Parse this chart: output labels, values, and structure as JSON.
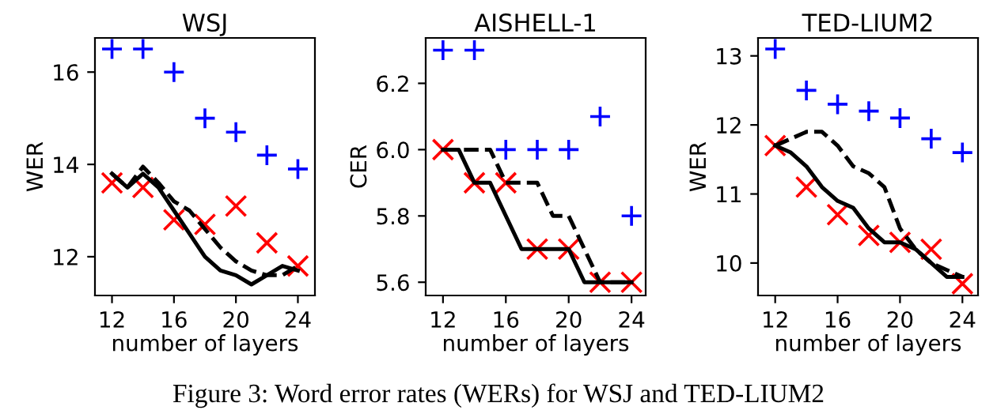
{
  "chart_data": [
    {
      "type": "line",
      "title": "WSJ",
      "xlabel": "number of layers",
      "ylabel": "WER",
      "xlim": [
        10.9,
        25.1
      ],
      "xticks": [
        12,
        16,
        20,
        24
      ],
      "ylim": [
        11.16,
        16.74
      ],
      "yticks": [
        12,
        14,
        16
      ],
      "grid": false,
      "legend": false,
      "annotations": [
        "Figure 3: Word error rates (WERs) for WSJ and TED-LIUM2"
      ],
      "series": [
        {
          "type": "scatter",
          "marker": "cross",
          "color": "#0000ff",
          "x": [
            12,
            14,
            16,
            18,
            20,
            22,
            24
          ],
          "values": [
            16.5,
            16.5,
            16.0,
            15.0,
            14.7,
            14.2,
            13.9
          ]
        },
        {
          "type": "scatter",
          "marker": "x",
          "color": "#ff0000",
          "x": [
            12,
            14,
            16,
            18,
            20,
            22,
            24
          ],
          "values": [
            13.6,
            13.5,
            12.8,
            12.7,
            13.1,
            12.3,
            11.8
          ]
        },
        {
          "line_style": "solid",
          "color": "#000000",
          "x": [
            12,
            13,
            14,
            15,
            16,
            17,
            18,
            19,
            20,
            21,
            22,
            23,
            24
          ],
          "values": [
            13.8,
            13.5,
            13.8,
            13.5,
            13.0,
            12.5,
            12.0,
            11.7,
            11.6,
            11.4,
            11.6,
            11.8,
            11.7
          ]
        },
        {
          "line_style": "dashed",
          "color": "#000000",
          "x": [
            12,
            13,
            14,
            15,
            16,
            17,
            18,
            19,
            20,
            21,
            22,
            23,
            24
          ],
          "values": [
            13.8,
            13.5,
            13.95,
            13.6,
            13.2,
            13.0,
            12.6,
            12.2,
            11.9,
            11.7,
            11.6,
            11.6,
            11.8
          ]
        }
      ]
    },
    {
      "type": "line",
      "title": "AISHELL-1",
      "xlabel": "number of layers",
      "ylabel": "CER",
      "xlim": [
        10.9,
        24.9
      ],
      "xticks": [
        12,
        16,
        20,
        24
      ],
      "ylim": [
        5.56,
        6.337
      ],
      "yticks": [
        {
          "value": 5.6,
          "label": "5.6"
        },
        {
          "value": 5.8,
          "label": "5.8"
        },
        {
          "value": 6.0,
          "label": "6.0"
        },
        {
          "value": 6.2,
          "label": "6.2"
        }
      ],
      "grid": false,
      "legend": false,
      "series": [
        {
          "type": "scatter",
          "marker": "cross",
          "color": "#0000ff",
          "x": [
            12,
            14,
            16,
            18,
            20,
            22,
            24
          ],
          "values": [
            6.3,
            6.3,
            6.0,
            6.0,
            6.0,
            6.1,
            5.8
          ]
        },
        {
          "type": "scatter",
          "marker": "x",
          "color": "#ff0000",
          "x": [
            12,
            14,
            16,
            18,
            20,
            22,
            24
          ],
          "values": [
            6.0,
            5.9,
            5.9,
            5.7,
            5.7,
            5.6,
            5.6
          ]
        },
        {
          "line_style": "solid",
          "color": "#000000",
          "x": [
            12,
            13,
            14,
            15,
            16,
            17,
            18,
            19,
            20,
            21,
            22,
            23,
            24
          ],
          "values": [
            6.0,
            6.0,
            5.9,
            5.9,
            5.8,
            5.7,
            5.7,
            5.7,
            5.7,
            5.6,
            5.6,
            5.6,
            5.6
          ]
        },
        {
          "line_style": "dashed",
          "color": "#000000",
          "x": [
            12,
            13,
            14,
            15,
            16,
            17,
            18,
            19,
            20,
            21,
            22,
            23,
            24
          ],
          "values": [
            6.0,
            6.0,
            6.0,
            6.0,
            5.9,
            5.9,
            5.9,
            5.8,
            5.8,
            5.7,
            5.6,
            5.6,
            5.6
          ]
        }
      ]
    },
    {
      "type": "line",
      "title": "TED-LIUM2",
      "xlabel": "number of layers",
      "ylabel": "WER",
      "xlim": [
        10.9,
        25.0
      ],
      "xticks": [
        12,
        16,
        20,
        24
      ],
      "ylim": [
        9.53,
        13.26
      ],
      "yticks": [
        10,
        11,
        12,
        13
      ],
      "grid": false,
      "legend": false,
      "series": [
        {
          "type": "scatter",
          "marker": "cross",
          "color": "#0000ff",
          "x": [
            12,
            14,
            16,
            18,
            20,
            22,
            24
          ],
          "values": [
            13.1,
            12.5,
            12.3,
            12.2,
            12.1,
            11.8,
            11.6
          ]
        },
        {
          "type": "scatter",
          "marker": "x",
          "color": "#ff0000",
          "x": [
            12,
            14,
            16,
            18,
            20,
            22,
            24
          ],
          "values": [
            11.7,
            11.1,
            10.7,
            10.4,
            10.3,
            10.2,
            9.7
          ]
        },
        {
          "line_style": "solid",
          "color": "#000000",
          "x": [
            12,
            13,
            14,
            15,
            16,
            17,
            18,
            19,
            20,
            21,
            22,
            23,
            24
          ],
          "values": [
            11.7,
            11.6,
            11.4,
            11.1,
            10.9,
            10.8,
            10.5,
            10.3,
            10.3,
            10.2,
            10.0,
            9.8,
            9.8
          ]
        },
        {
          "line_style": "dashed",
          "color": "#000000",
          "x": [
            12,
            13,
            14,
            15,
            16,
            17,
            18,
            19,
            20,
            21,
            22,
            23,
            24
          ],
          "values": [
            11.7,
            11.8,
            11.9,
            11.9,
            11.7,
            11.4,
            11.3,
            11.1,
            10.5,
            10.2,
            10.0,
            9.9,
            9.8
          ]
        }
      ]
    }
  ]
}
